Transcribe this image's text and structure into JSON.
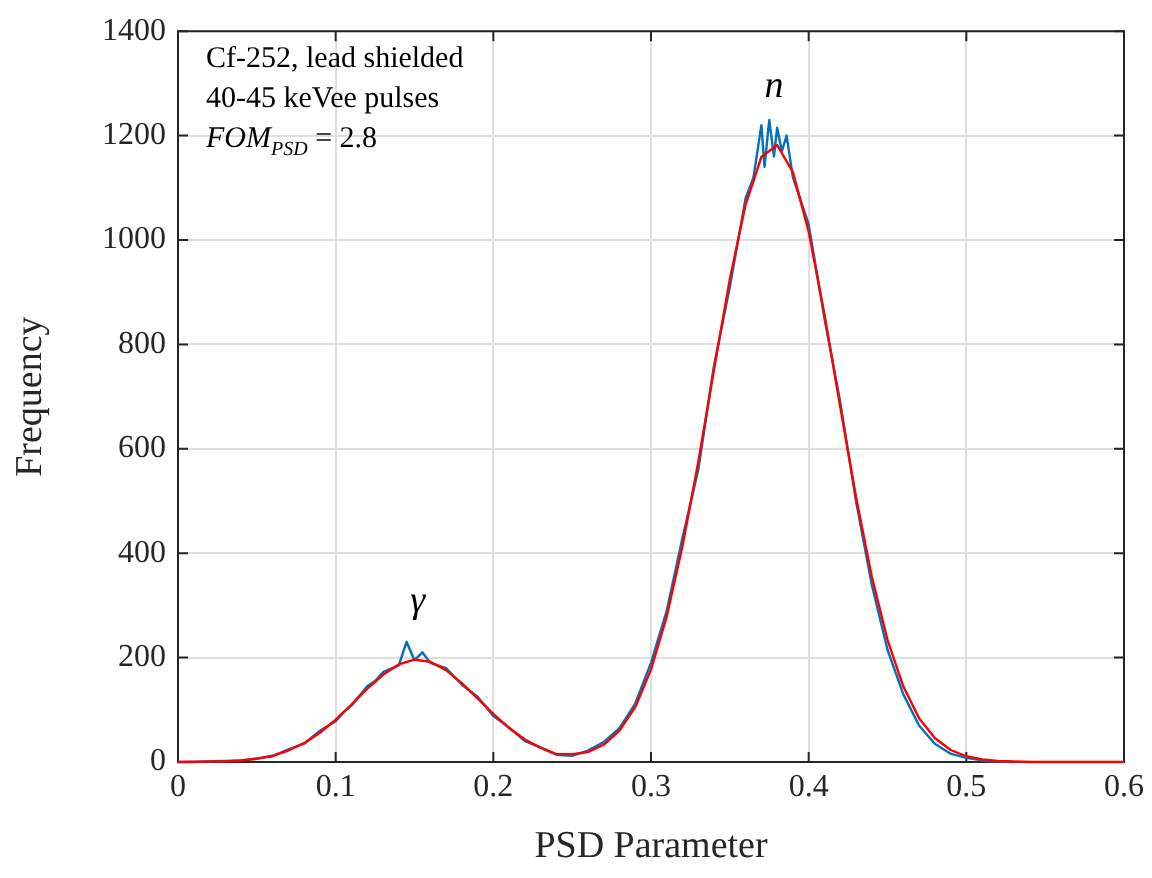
{
  "chart_data": {
    "type": "line",
    "xlabel": "PSD Parameter",
    "ylabel": "Frequency",
    "xlim": [
      0,
      0.6
    ],
    "ylim": [
      0,
      1400
    ],
    "xticks": [
      0,
      0.1,
      0.2,
      0.3,
      0.4,
      0.5,
      0.6
    ],
    "yticks": [
      0,
      200,
      400,
      600,
      800,
      1000,
      1200,
      1400
    ],
    "grid": true,
    "legend": false,
    "marker": "none",
    "line_style": "solid",
    "annotations": [
      "Cf-252, lead shielded",
      "40-45 keVee pulses",
      "FOM$_{PSD}$ = 2.8",
      {
        "text": "γ",
        "x": 0.152,
        "y": 196
      },
      {
        "text": "n",
        "x": 0.378,
        "y": 1182
      }
    ],
    "series": [
      {
        "color": "#0072bd",
        "x": [
          0,
          0.02,
          0.04,
          0.05,
          0.06,
          0.07,
          0.08,
          0.09,
          0.1,
          0.105,
          0.11,
          0.12,
          0.125,
          0.13,
          0.14,
          0.145,
          0.15,
          0.155,
          0.16,
          0.17,
          0.18,
          0.19,
          0.2,
          0.21,
          0.22,
          0.23,
          0.24,
          0.25,
          0.26,
          0.27,
          0.28,
          0.29,
          0.3,
          0.31,
          0.32,
          0.33,
          0.34,
          0.35,
          0.36,
          0.365,
          0.37,
          0.372,
          0.375,
          0.378,
          0.38,
          0.383,
          0.386,
          0.39,
          0.4,
          0.41,
          0.42,
          0.43,
          0.44,
          0.45,
          0.46,
          0.47,
          0.48,
          0.49,
          0.5,
          0.51,
          0.52,
          0.53
        ],
        "values": [
          0,
          1,
          3,
          7,
          11,
          24,
          35,
          60,
          78,
          95,
          108,
          145,
          155,
          172,
          185,
          230,
          195,
          210,
          190,
          180,
          148,
          125,
          88,
          66,
          40,
          28,
          14,
          12,
          22,
          38,
          65,
          112,
          190,
          290,
          430,
          560,
          760,
          910,
          1080,
          1120,
          1220,
          1140,
          1230,
          1160,
          1215,
          1170,
          1200,
          1120,
          1030,
          850,
          690,
          500,
          340,
          215,
          130,
          70,
          35,
          16,
          8,
          3,
          1,
          0
        ]
      },
      {
        "color": "#ff0000",
        "x": [
          0,
          0.01,
          0.02,
          0.03,
          0.04,
          0.05,
          0.06,
          0.07,
          0.08,
          0.09,
          0.1,
          0.11,
          0.12,
          0.13,
          0.14,
          0.15,
          0.16,
          0.17,
          0.18,
          0.19,
          0.2,
          0.21,
          0.22,
          0.23,
          0.24,
          0.25,
          0.26,
          0.27,
          0.28,
          0.29,
          0.3,
          0.31,
          0.32,
          0.33,
          0.34,
          0.35,
          0.36,
          0.37,
          0.38,
          0.39,
          0.4,
          0.41,
          0.42,
          0.43,
          0.44,
          0.45,
          0.46,
          0.47,
          0.48,
          0.49,
          0.5,
          0.51,
          0.52,
          0.53,
          0.54,
          0.56,
          0.58,
          0.6
        ],
        "values": [
          0,
          0,
          1,
          1,
          3,
          6,
          12,
          22,
          36,
          56,
          81,
          110,
          140,
          167,
          187,
          196,
          192,
          176,
          151,
          122,
          92,
          65,
          43,
          27,
          15,
          15,
          19,
          33,
          60,
          105,
          177,
          279,
          414,
          575,
          753,
          925,
          1068,
          1159,
          1182,
          1130,
          1016,
          858,
          681,
          508,
          356,
          234,
          145,
          84,
          46,
          23,
          11,
          5,
          2,
          1,
          0,
          0,
          0,
          0
        ]
      }
    ]
  }
}
